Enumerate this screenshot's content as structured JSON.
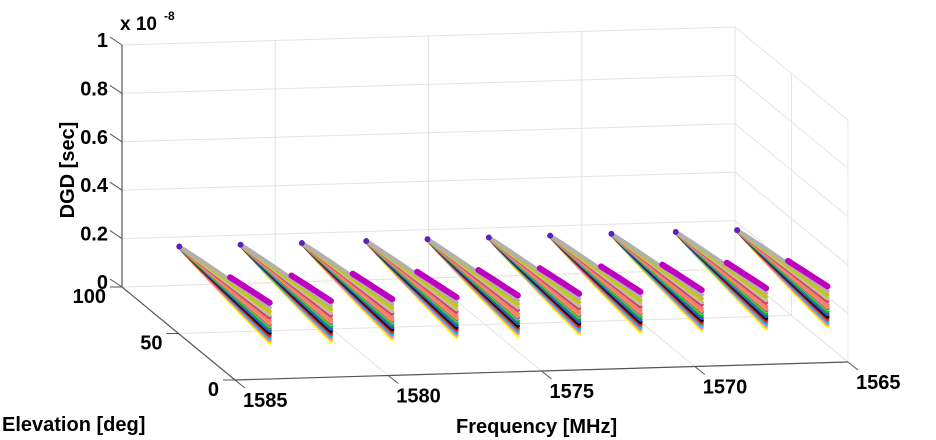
{
  "chart_data": {
    "type": "line3d",
    "title": "",
    "exponent_label": "x 10",
    "exponent_power": "-8",
    "xlabel": "Frequency [MHz]",
    "ylabel": "Elevation [deg]",
    "zlabel": "DGD [sec]",
    "xlim": [
      1565,
      1585
    ],
    "ylim": [
      0,
      100
    ],
    "zlim": [
      0,
      1
    ],
    "z_scale": 1e-08,
    "x_ticks": [
      "1585",
      "1580",
      "1575",
      "1570",
      "1565"
    ],
    "x_tick_values": [
      1585,
      1580,
      1575,
      1570,
      1565
    ],
    "y_ticks": [
      "0",
      "50",
      "100"
    ],
    "y_tick_values": [
      0,
      50,
      100
    ],
    "z_ticks": [
      "0",
      "0.2",
      "0.4",
      "0.6",
      "0.8",
      "1"
    ],
    "z_tick_values": [
      0,
      0.2,
      0.4,
      0.6,
      0.8,
      1
    ],
    "grid": true,
    "x_reversed": true,
    "fan_frequencies": [
      1583.5,
      1581.5,
      1579.5,
      1577.4,
      1575.4,
      1573.4,
      1571.4,
      1569.4,
      1567.3,
      1565.3
    ],
    "elevation_start": 90,
    "elevation_end": 10,
    "dgd_at_start": 0.2,
    "series": [
      {
        "color": "#ffff00",
        "dgd_end": 0.11,
        "from": 0
      },
      {
        "color": "#ff80c0",
        "dgd_end": 0.12,
        "from": 0
      },
      {
        "color": "#00c8e0",
        "dgd_end": 0.13,
        "from": 0
      },
      {
        "color": "#ff2020",
        "dgd_end": 0.14,
        "from": 0
      },
      {
        "color": "#101010",
        "dgd_end": 0.15,
        "from": 0
      },
      {
        "color": "#3050e0",
        "dgd_end": 0.16,
        "from": 0
      },
      {
        "color": "#20a040",
        "dgd_end": 0.17,
        "from": 0
      },
      {
        "color": "#30ff30",
        "dgd_end": 0.18,
        "from": 0
      },
      {
        "color": "#9050e0",
        "dgd_end": 0.185,
        "from": 0
      },
      {
        "color": "#ff9040",
        "dgd_end": 0.19,
        "from": 0
      },
      {
        "color": "#f08070",
        "dgd_end": 0.2,
        "from": 0
      },
      {
        "color": "#d04070",
        "dgd_end": 0.215,
        "from": 0
      },
      {
        "color": "#c0c0a0",
        "dgd_end": 0.225,
        "from": 0
      },
      {
        "color": "#c8c800",
        "dgd_end": 0.24,
        "from": 0
      },
      {
        "color": "#b0b0b0",
        "dgd_end": 0.255,
        "from": 0
      },
      {
        "color": "#c000c0",
        "dgd_end": 0.275,
        "from": 0.55
      }
    ],
    "tip_marker_color": "#6020c0"
  }
}
